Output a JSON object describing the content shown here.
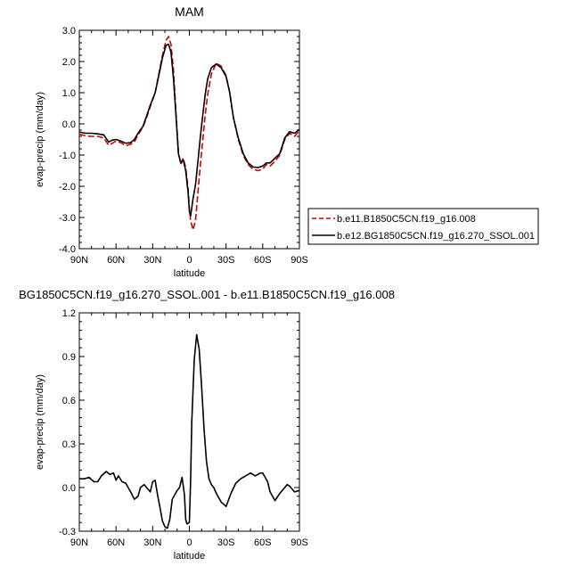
{
  "chart_data": [
    {
      "type": "line",
      "title": "MAM",
      "xlabel": "latitude",
      "ylabel": "evap-precip (mm/day)",
      "xlim": [
        90,
        -90
      ],
      "ylim": [
        -4.0,
        3.0
      ],
      "xticks": [
        90,
        60,
        30,
        0,
        -30,
        -60,
        -90
      ],
      "xtick_labels": [
        "90N",
        "60N",
        "30N",
        "0",
        "30S",
        "60S",
        "90S"
      ],
      "yticks": [
        -4.0,
        -3.0,
        -2.0,
        -1.0,
        0.0,
        1.0,
        2.0,
        3.0
      ],
      "ytick_labels": [
        "-4.0",
        "-3.0",
        "-2.0",
        "-1.0",
        "0.0",
        "1.0",
        "2.0",
        "3.0"
      ],
      "grid": false,
      "legend_position": "right",
      "series": [
        {
          "name": "b.e11.B1850C5CN.f19_g16.008",
          "color": "#cc0000",
          "dash": "dashed",
          "x": [
            90,
            85,
            80,
            75,
            70,
            66,
            63,
            60,
            56,
            52,
            48,
            45,
            42,
            38,
            35,
            32,
            28,
            25,
            22,
            19,
            17,
            15,
            13,
            11,
            9,
            7,
            5,
            3,
            1,
            0,
            -1,
            -3,
            -5,
            -7,
            -9,
            -11,
            -13,
            -15,
            -18,
            -22,
            -26,
            -30,
            -33,
            -36,
            -40,
            -44,
            -48,
            -52,
            -56,
            -60,
            -63,
            -66,
            -70,
            -74,
            -78,
            -82,
            -86,
            -90
          ],
          "y": [
            -0.33,
            -0.38,
            -0.4,
            -0.4,
            -0.45,
            -0.68,
            -0.62,
            -0.55,
            -0.6,
            -0.7,
            -0.65,
            -0.58,
            -0.35,
            -0.1,
            0.2,
            0.55,
            1.0,
            1.6,
            2.2,
            2.68,
            2.8,
            2.55,
            1.7,
            0.4,
            -0.9,
            -1.3,
            -1.1,
            -1.4,
            -2.1,
            -2.7,
            -3.1,
            -3.4,
            -3.1,
            -2.2,
            -1.3,
            -0.5,
            0.3,
            0.95,
            1.6,
            1.95,
            1.85,
            1.55,
            1.0,
            0.2,
            -0.5,
            -1.0,
            -1.3,
            -1.45,
            -1.5,
            -1.45,
            -1.3,
            -1.35,
            -1.2,
            -1.0,
            -0.5,
            -0.3,
            -0.4,
            -0.22
          ]
        },
        {
          "name": "b.e12.BG1850C5CN.f19_g16.270_SSOL.001",
          "color": "#000000",
          "dash": "solid",
          "x": [
            90,
            85,
            80,
            75,
            70,
            66,
            63,
            60,
            56,
            52,
            48,
            45,
            42,
            38,
            35,
            32,
            28,
            25,
            22,
            19,
            17,
            15,
            13,
            11,
            9,
            7,
            5,
            3,
            1,
            0,
            -1,
            -3,
            -5,
            -7,
            -9,
            -11,
            -13,
            -15,
            -18,
            -22,
            -26,
            -30,
            -33,
            -36,
            -40,
            -44,
            -48,
            -52,
            -56,
            -60,
            -63,
            -66,
            -70,
            -74,
            -78,
            -82,
            -86,
            -90
          ],
          "y": [
            -0.26,
            -0.3,
            -0.3,
            -0.32,
            -0.35,
            -0.58,
            -0.52,
            -0.5,
            -0.55,
            -0.62,
            -0.6,
            -0.5,
            -0.3,
            -0.08,
            0.25,
            0.6,
            1.0,
            1.55,
            2.12,
            2.52,
            2.55,
            2.3,
            1.45,
            0.3,
            -0.95,
            -1.25,
            -1.15,
            -1.5,
            -2.2,
            -2.8,
            -2.95,
            -2.4,
            -1.95,
            -1.2,
            -0.4,
            0.3,
            0.95,
            1.45,
            1.8,
            1.92,
            1.8,
            1.52,
            1.0,
            0.2,
            -0.45,
            -0.95,
            -1.25,
            -1.38,
            -1.4,
            -1.35,
            -1.25,
            -1.25,
            -1.1,
            -0.95,
            -0.45,
            -0.25,
            -0.3,
            -0.18
          ]
        }
      ]
    },
    {
      "type": "line",
      "title": "BG1850C5CN.f19_g16.270_SSOL.001 - b.e11.B1850C5CN.f19_g16.008",
      "xlabel": "latitude",
      "ylabel": "evap-precip (mm/day)",
      "xlim": [
        90,
        -90
      ],
      "ylim": [
        -0.3,
        1.2
      ],
      "xticks": [
        90,
        60,
        30,
        0,
        -30,
        -60,
        -90
      ],
      "xtick_labels": [
        "90N",
        "60N",
        "30N",
        "0",
        "30S",
        "60S",
        "90S"
      ],
      "yticks": [
        -0.3,
        0.0,
        0.3,
        0.6,
        0.9,
        1.2
      ],
      "ytick_labels": [
        "-0.3",
        "0.0",
        "0.3",
        "0.6",
        "0.9",
        "1.2"
      ],
      "grid": false,
      "series": [
        {
          "color": "#000000",
          "dash": "solid",
          "x": [
            90,
            86,
            82,
            78,
            75,
            72,
            68,
            65,
            62,
            60,
            58,
            55,
            52,
            48,
            45,
            42,
            40,
            37,
            35,
            32,
            30,
            28,
            26,
            24,
            22,
            20,
            18,
            16,
            14,
            12,
            10,
            8,
            6,
            4,
            3,
            2,
            0,
            -1,
            -2,
            -4,
            -6,
            -8,
            -10,
            -12,
            -14,
            -16,
            -18,
            -20,
            -22,
            -26,
            -30,
            -34,
            -38,
            -42,
            -46,
            -50,
            -54,
            -58,
            -60,
            -62,
            -64,
            -66,
            -70,
            -74,
            -78,
            -80,
            -82,
            -86,
            -90
          ],
          "y": [
            0.06,
            0.06,
            0.07,
            0.04,
            0.04,
            0.08,
            0.11,
            0.09,
            0.1,
            0.05,
            0.08,
            0.04,
            0.03,
            -0.03,
            -0.08,
            -0.06,
            0.0,
            0.02,
            0.0,
            -0.03,
            0.04,
            0.05,
            -0.05,
            -0.14,
            -0.23,
            -0.27,
            -0.28,
            -0.22,
            -0.08,
            -0.05,
            -0.02,
            0.0,
            0.07,
            -0.05,
            -0.22,
            -0.25,
            -0.24,
            0.05,
            0.45,
            0.88,
            1.05,
            0.95,
            0.7,
            0.4,
            0.18,
            0.06,
            0.02,
            0.0,
            -0.04,
            -0.1,
            -0.13,
            -0.04,
            0.03,
            0.06,
            0.08,
            0.1,
            0.08,
            0.1,
            0.1,
            0.07,
            0.04,
            -0.03,
            -0.09,
            -0.04,
            0.0,
            0.02,
            0.01,
            -0.03,
            -0.02
          ]
        }
      ]
    }
  ]
}
